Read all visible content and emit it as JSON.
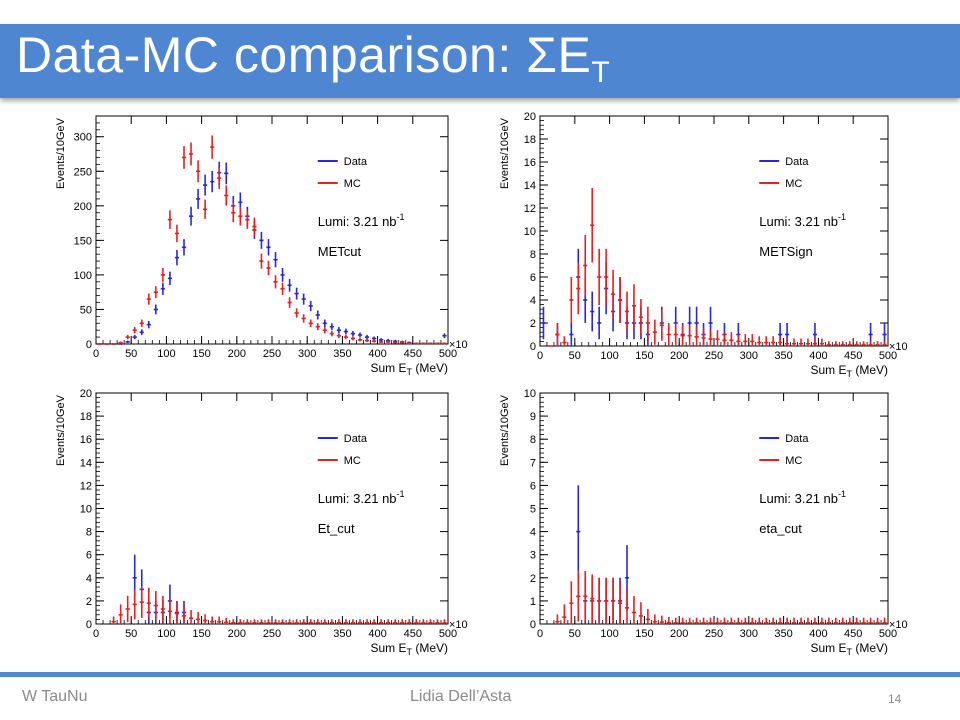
{
  "slide": {
    "title": "Data-MC comparison: ΣE",
    "title_subscript": "T",
    "footer_left": "W TauNu",
    "footer_center": "Lidia Dell’Asta",
    "page_number": "14"
  },
  "colors": {
    "accent": "#4f86d1",
    "data": "#2828d8",
    "mc": "#e82020"
  },
  "chart_data": [
    {
      "type": "scatter",
      "title": "",
      "ylabel": "Events/10GeV",
      "xlabel_main": "Sum E",
      "xlabel_sub": "T",
      "xlabel_unit": " (MeV)",
      "x_multiplier": "×10",
      "legend": [
        "Data",
        "MC"
      ],
      "legend_position": "top-right",
      "lumi_text": "Lumi: 3.21 nb",
      "lumi_exp": "-1",
      "cut_label": "METcut",
      "xlim": [
        0,
        500
      ],
      "ylim": [
        0,
        330
      ],
      "yticks": [
        0,
        50,
        100,
        150,
        200,
        250,
        300
      ],
      "xticks": [
        0,
        50,
        100,
        150,
        200,
        250,
        300,
        350,
        400,
        450,
        500
      ],
      "series": [
        {
          "name": "Data",
          "x": [
            5,
            15,
            25,
            35,
            45,
            55,
            65,
            75,
            85,
            95,
            105,
            115,
            125,
            135,
            145,
            155,
            165,
            175,
            185,
            195,
            205,
            215,
            225,
            235,
            245,
            255,
            265,
            275,
            285,
            295,
            305,
            315,
            325,
            335,
            345,
            355,
            365,
            375,
            385,
            395,
            405,
            415,
            425,
            435,
            445,
            495
          ],
          "y": [
            0,
            0,
            0,
            0,
            3,
            10,
            17,
            28,
            50,
            80,
            95,
            125,
            140,
            185,
            210,
            230,
            235,
            248,
            247,
            200,
            205,
            185,
            165,
            150,
            140,
            122,
            100,
            85,
            73,
            65,
            55,
            42,
            30,
            25,
            20,
            18,
            15,
            13,
            10,
            8,
            6,
            5,
            4,
            3,
            2,
            12
          ]
        },
        {
          "name": "MC",
          "x": [
            5,
            15,
            25,
            35,
            45,
            55,
            65,
            75,
            85,
            95,
            105,
            115,
            125,
            135,
            145,
            155,
            165,
            175,
            185,
            195,
            205,
            215,
            225,
            235,
            245,
            255,
            265,
            275,
            285,
            295,
            305,
            315,
            325,
            335,
            345,
            355,
            365,
            375,
            385,
            395,
            405,
            415,
            425,
            435,
            445,
            455,
            465,
            475,
            485,
            495
          ],
          "y": [
            0,
            0,
            0,
            2,
            10,
            20,
            30,
            65,
            75,
            100,
            180,
            160,
            270,
            275,
            250,
            195,
            285,
            240,
            215,
            190,
            185,
            180,
            170,
            120,
            110,
            90,
            80,
            60,
            45,
            37,
            30,
            25,
            20,
            15,
            12,
            10,
            8,
            6,
            5,
            4,
            3,
            3,
            2,
            2,
            1,
            1,
            1,
            1,
            1,
            1
          ]
        }
      ]
    },
    {
      "type": "scatter",
      "title": "",
      "ylabel": "Events/10GeV",
      "xlabel_main": "Sum E",
      "xlabel_sub": "T",
      "xlabel_unit": " (MeV)",
      "x_multiplier": "×10",
      "legend": [
        "Data",
        "MC"
      ],
      "legend_position": "top-right",
      "lumi_text": "Lumi: 3.21 nb",
      "lumi_exp": "-1",
      "cut_label": "METSign",
      "xlim": [
        0,
        500
      ],
      "ylim": [
        0,
        20
      ],
      "yticks": [
        0,
        2,
        4,
        6,
        8,
        10,
        12,
        14,
        16,
        18,
        20
      ],
      "xticks": [
        0,
        50,
        100,
        150,
        200,
        250,
        300,
        350,
        400,
        450,
        500
      ],
      "series": [
        {
          "name": "Data",
          "x": [
            5,
            25,
            45,
            55,
            65,
            75,
            85,
            95,
            105,
            115,
            125,
            135,
            145,
            155,
            175,
            195,
            205,
            215,
            225,
            235,
            245,
            265,
            285,
            345,
            355,
            395,
            475,
            495
          ],
          "y": [
            2,
            1,
            1,
            6,
            4,
            3,
            2,
            5,
            3,
            4,
            2,
            2,
            2,
            1,
            2,
            2,
            1,
            2,
            2,
            1,
            2,
            1,
            1,
            1,
            1,
            1,
            1,
            1
          ]
        },
        {
          "name": "MC",
          "x": [
            15,
            25,
            35,
            45,
            55,
            65,
            75,
            85,
            95,
            105,
            115,
            125,
            135,
            145,
            155,
            165,
            175,
            185,
            195,
            205,
            215,
            225,
            235,
            245,
            255,
            265,
            275,
            285,
            295,
            305,
            315,
            325,
            335,
            345,
            355,
            365,
            375,
            385,
            395,
            405,
            415,
            425,
            435,
            445,
            455,
            465,
            475,
            485,
            495
          ],
          "y": [
            0,
            1,
            0.3,
            4,
            5,
            7,
            10.5,
            6,
            6,
            4.5,
            4,
            3,
            3.5,
            2.5,
            2,
            1.2,
            1.8,
            1,
            1,
            0.9,
            0.9,
            0.8,
            0.7,
            0.6,
            0.6,
            0.5,
            0.5,
            0.4,
            0.4,
            0.4,
            0.3,
            0.3,
            0.3,
            0.3,
            0.2,
            0.2,
            0.2,
            0.2,
            0.2,
            0.2,
            0.1,
            0.1,
            0.1,
            0.1,
            0.1,
            0.1,
            0.1,
            0.1,
            0.1
          ]
        }
      ]
    },
    {
      "type": "scatter",
      "title": "",
      "ylabel": "Events/10GeV",
      "xlabel_main": "Sum E",
      "xlabel_sub": "T",
      "xlabel_unit": " (MeV)",
      "x_multiplier": "×10",
      "legend": [
        "Data",
        "MC"
      ],
      "legend_position": "top-right",
      "lumi_text": "Lumi: 3.21 nb",
      "lumi_exp": "-1",
      "cut_label": "Et_cut",
      "xlim": [
        0,
        500
      ],
      "ylim": [
        0,
        20
      ],
      "yticks": [
        0,
        2,
        4,
        6,
        8,
        10,
        12,
        14,
        16,
        18,
        20
      ],
      "xticks": [
        0,
        50,
        100,
        150,
        200,
        250,
        300,
        350,
        400,
        450,
        500
      ],
      "series": [
        {
          "name": "Data",
          "x": [
            55,
            65,
            75,
            85,
            95,
            105,
            115,
            125
          ],
          "y": [
            4,
            3,
            1,
            1,
            1,
            2,
            1,
            1
          ]
        },
        {
          "name": "MC",
          "x": [
            25,
            35,
            45,
            55,
            65,
            75,
            85,
            95,
            105,
            115,
            125,
            135,
            145,
            155,
            165,
            175,
            185,
            195,
            205,
            215,
            225,
            235,
            245,
            255,
            265,
            275,
            285,
            295,
            305,
            315,
            325,
            335,
            345,
            355,
            365,
            375,
            385,
            395,
            405,
            415,
            425,
            435,
            445,
            455,
            465,
            475,
            485,
            495
          ],
          "y": [
            0.2,
            0.8,
            1.3,
            1.7,
            1.9,
            1.8,
            1.6,
            1.3,
            1.1,
            0.9,
            0.7,
            0.5,
            0.4,
            0.3,
            0.2,
            0.2,
            0.15,
            0.1,
            0.1,
            0.1,
            0.1,
            0.1,
            0.1,
            0.1,
            0.1,
            0.1,
            0.1,
            0.1,
            0.1,
            0.1,
            0.1,
            0.1,
            0.1,
            0.1,
            0.1,
            0.1,
            0.1,
            0.1,
            0.1,
            0.1,
            0.1,
            0.1,
            0.1,
            0.1,
            0.1,
            0.1,
            0.1,
            0.1
          ]
        }
      ]
    },
    {
      "type": "scatter",
      "title": "",
      "ylabel": "Events/10GeV",
      "xlabel_main": "Sum E",
      "xlabel_sub": "T",
      "xlabel_unit": " (MeV)",
      "x_multiplier": "×10",
      "legend": [
        "Data",
        "MC"
      ],
      "legend_position": "top-right",
      "lumi_text": "Lumi: 3.21 nb",
      "lumi_exp": "-1",
      "cut_label": "eta_cut",
      "xlim": [
        0,
        500
      ],
      "ylim": [
        0,
        10
      ],
      "yticks": [
        0,
        1,
        2,
        3,
        4,
        5,
        6,
        7,
        8,
        9,
        10
      ],
      "xticks": [
        0,
        50,
        100,
        150,
        200,
        250,
        300,
        350,
        400,
        450,
        500
      ],
      "series": [
        {
          "name": "Data",
          "x": [
            55,
            65,
            75,
            85,
            95,
            105,
            115,
            125
          ],
          "y": [
            4,
            1,
            1,
            1,
            1,
            1,
            1,
            2
          ]
        },
        {
          "name": "MC",
          "x": [
            25,
            35,
            45,
            55,
            65,
            75,
            85,
            95,
            105,
            115,
            125,
            135,
            145,
            155,
            165,
            175,
            185,
            195,
            205,
            215,
            225,
            235,
            245,
            255,
            265,
            275,
            285,
            295,
            305,
            315,
            325,
            335,
            345,
            355,
            365,
            375,
            385,
            395,
            405,
            415,
            425,
            435,
            445,
            455,
            465,
            475,
            485,
            495
          ],
          "y": [
            0.1,
            0.3,
            0.9,
            1.2,
            1.2,
            1.1,
            1.0,
            1.0,
            1.0,
            0.9,
            0.7,
            0.5,
            0.35,
            0.2,
            0.1,
            0.08,
            0.06,
            0.05,
            0.05,
            0.05,
            0.05,
            0.05,
            0.05,
            0.05,
            0.05,
            0.05,
            0.05,
            0.05,
            0.05,
            0.05,
            0.05,
            0.05,
            0.05,
            0.05,
            0.05,
            0.05,
            0.05,
            0.05,
            0.05,
            0.05,
            0.05,
            0.05,
            0.05,
            0.05,
            0.05,
            0.05,
            0.05,
            0.05
          ]
        }
      ]
    }
  ]
}
